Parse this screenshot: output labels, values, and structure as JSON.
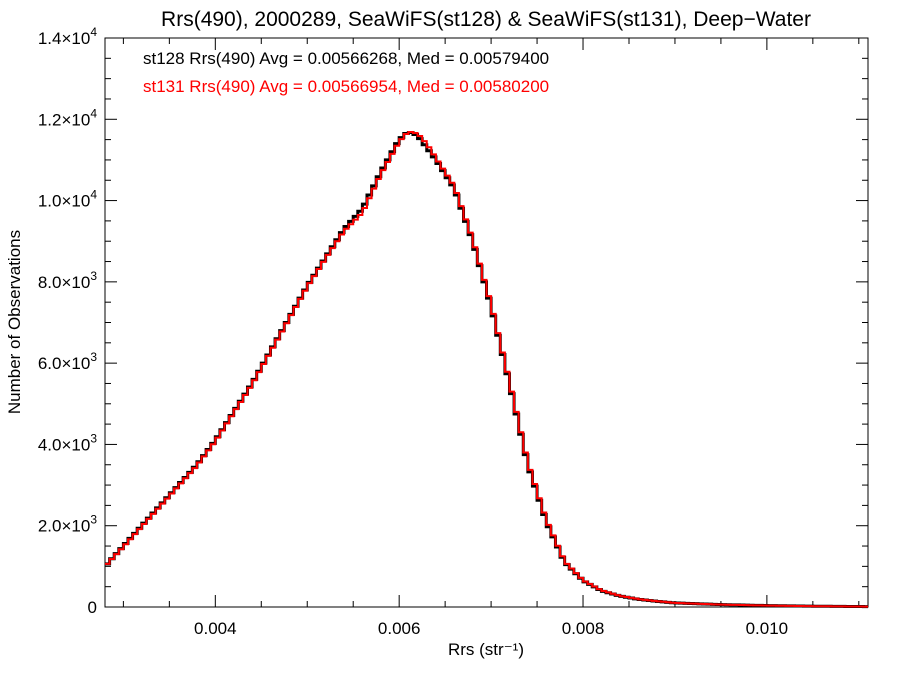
{
  "chart_data": {
    "type": "line",
    "title": "Rrs(490), 2000289, SeaWiFS(st128) & SeaWiFS(st131), Deep−Water",
    "xlabel": "Rrs (str⁻¹)",
    "ylabel": "Number of Observations",
    "xlim": [
      0.0028,
      0.0111
    ],
    "ylim": [
      0,
      14000
    ],
    "x_ticks": [
      {
        "value": 0.004,
        "label": "0.004"
      },
      {
        "value": 0.006,
        "label": "0.006"
      },
      {
        "value": 0.008,
        "label": "0.008"
      },
      {
        "value": 0.01,
        "label": "0.010"
      }
    ],
    "y_ticks": [
      {
        "value": 0,
        "mant": "0",
        "exp": ""
      },
      {
        "value": 2000,
        "mant": "2.0×10",
        "exp": "3"
      },
      {
        "value": 4000,
        "mant": "4.0×10",
        "exp": "3"
      },
      {
        "value": 6000,
        "mant": "6.0×10",
        "exp": "3"
      },
      {
        "value": 8000,
        "mant": "8.0×10",
        "exp": "3"
      },
      {
        "value": 10000,
        "mant": "1.0×10",
        "exp": "4"
      },
      {
        "value": 12000,
        "mant": "1.2×10",
        "exp": "4"
      },
      {
        "value": 14000,
        "mant": "1.4×10",
        "exp": "4"
      }
    ],
    "grid": false,
    "series": [
      {
        "name": "st128",
        "legend": "st128 Rrs(490) Avg = 0.00566268, Med = 0.00579400",
        "color": "#000000",
        "x": [
          0.0028,
          0.003,
          0.0032,
          0.0034,
          0.0036,
          0.0038,
          0.004,
          0.0042,
          0.0044,
          0.0046,
          0.0048,
          0.005,
          0.0052,
          0.0054,
          0.0056,
          0.0058,
          0.006,
          0.0061,
          0.0062,
          0.0063,
          0.0064,
          0.0066,
          0.0068,
          0.007,
          0.0072,
          0.0074,
          0.0076,
          0.0078,
          0.008,
          0.0082,
          0.0084,
          0.0086,
          0.0088,
          0.009,
          0.0095,
          0.01,
          0.0105,
          0.0111
        ],
        "y": [
          1000,
          1500,
          2000,
          2500,
          3000,
          3500,
          4100,
          4800,
          5500,
          6300,
          7100,
          7900,
          8600,
          9300,
          9800,
          10700,
          11500,
          11700,
          11600,
          11300,
          11000,
          10300,
          9000,
          7400,
          5500,
          3500,
          2100,
          1100,
          650,
          400,
          270,
          190,
          140,
          100,
          60,
          35,
          20,
          10
        ]
      },
      {
        "name": "st131",
        "legend": "st131 Rrs(490) Avg = 0.00566954, Med = 0.00580200",
        "color": "#ff0000",
        "x": [
          0.0028,
          0.003,
          0.0032,
          0.0034,
          0.0036,
          0.0038,
          0.004,
          0.0042,
          0.0044,
          0.0046,
          0.0048,
          0.005,
          0.0052,
          0.0054,
          0.0056,
          0.0058,
          0.006,
          0.0061,
          0.0062,
          0.0063,
          0.0064,
          0.0066,
          0.0068,
          0.007,
          0.0072,
          0.0074,
          0.0076,
          0.0078,
          0.008,
          0.0082,
          0.0084,
          0.0086,
          0.0088,
          0.009,
          0.0095,
          0.01,
          0.0105,
          0.0111
        ],
        "y": [
          1000,
          1480,
          1980,
          2480,
          2980,
          3480,
          4080,
          4780,
          5480,
          6280,
          7080,
          7880,
          8580,
          9250,
          9700,
          10650,
          11450,
          11700,
          11650,
          11400,
          11050,
          10350,
          9050,
          7450,
          5550,
          3550,
          2150,
          1120,
          660,
          410,
          275,
          195,
          145,
          100,
          60,
          35,
          20,
          10
        ]
      }
    ]
  }
}
